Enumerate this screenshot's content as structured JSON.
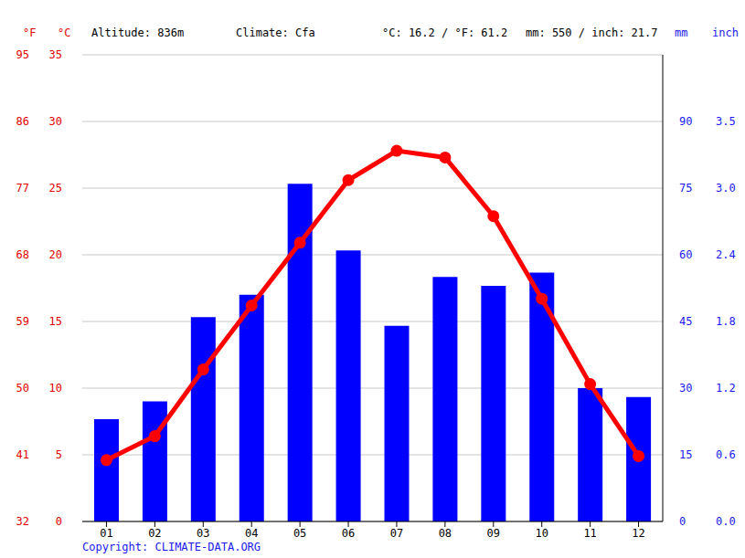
{
  "chart_data": {
    "type": "bar",
    "header": [
      "Altitude: 836m",
      "Climate: Cfa",
      "°C: 16.2 / °F: 61.2",
      "mm: 550 / inch: 21.7"
    ],
    "axis_units": {
      "left_outer": "°F",
      "left": "°C",
      "right": "mm",
      "right_outer": "inch"
    },
    "copyright": "Copyright: CLIMATE-DATA.ORG",
    "categories": [
      "01",
      "02",
      "03",
      "04",
      "05",
      "06",
      "07",
      "08",
      "09",
      "10",
      "11",
      "12"
    ],
    "series": [
      {
        "type": "bar",
        "axis": "y2",
        "color": "#0000ff",
        "values": [
          23,
          27,
          46,
          51,
          76,
          61,
          44,
          55,
          53,
          56,
          30,
          28
        ]
      },
      {
        "type": "line",
        "axis": "y",
        "color": "#ff0000",
        "marker": "circle",
        "values": [
          4.6,
          6.4,
          11.4,
          16.2,
          20.9,
          25.6,
          27.8,
          27.3,
          22.9,
          16.7,
          10.3,
          4.9
        ]
      }
    ],
    "ylim": [
      0,
      35
    ],
    "yticks": [
      0,
      5,
      10,
      15,
      20,
      25,
      30,
      35
    ],
    "yticks_f": [
      {
        "value": 0,
        "label": "32"
      },
      {
        "value": 5,
        "label": "41"
      },
      {
        "value": 10,
        "label": "50"
      },
      {
        "value": 15,
        "label": "59"
      },
      {
        "value": 20,
        "label": "68"
      },
      {
        "value": 25,
        "label": "77"
      },
      {
        "value": 30,
        "label": "86"
      },
      {
        "value": 35,
        "label": "95"
      }
    ],
    "y2lim": [
      0,
      105
    ],
    "y2ticks": [
      0,
      15,
      30,
      45,
      60,
      75,
      90
    ],
    "y2ticks_inch": [
      {
        "value": 0,
        "label": "0.0"
      },
      {
        "value": 15,
        "label": "0.6"
      },
      {
        "value": 30,
        "label": "1.2"
      },
      {
        "value": 45,
        "label": "1.8"
      },
      {
        "value": 60,
        "label": "2.4"
      },
      {
        "value": 75,
        "label": "3.0"
      },
      {
        "value": 90,
        "label": "3.5"
      }
    ],
    "grid": true
  }
}
